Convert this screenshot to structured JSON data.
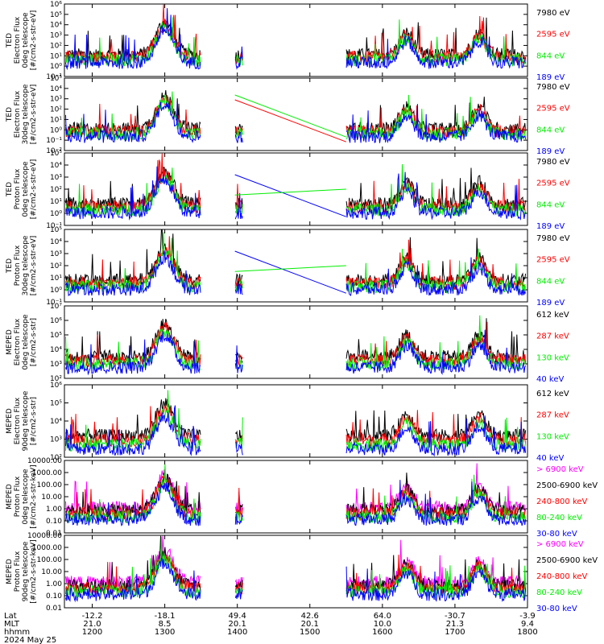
{
  "chart_data": [
    {
      "type": "line",
      "ylabel": [
        "TED",
        "Electron Flux",
        "0deg telescope",
        "[#/cm2-s-str-eV]"
      ],
      "yticks": [
        "10⁻¹",
        "10⁰",
        "10¹",
        "10²",
        "10³",
        "10⁴",
        "10⁵",
        "10⁶"
      ],
      "ylim_log": [
        -1,
        6
      ],
      "series": [
        {
          "name": "7980 eV",
          "color": "#000000"
        },
        {
          "name": "2595 eV",
          "color": "#ff0000"
        },
        {
          "name": "844 eV",
          "color": "#00ee00"
        },
        {
          "name": "189 eV",
          "color": "#0000ff"
        }
      ]
    },
    {
      "type": "line",
      "ylabel": [
        "TED",
        "Electron Flux",
        "30deg telescope",
        "[#/cm2-s-str-eV]"
      ],
      "yticks": [
        "10⁻²",
        "10⁻¹",
        "10⁰",
        "10¹",
        "10²",
        "10³",
        "10⁴",
        "10⁵"
      ],
      "ylim_log": [
        -2,
        5
      ],
      "series": [
        {
          "name": "7980 eV",
          "color": "#000000"
        },
        {
          "name": "2595 eV",
          "color": "#ff0000"
        },
        {
          "name": "844 eV",
          "color": "#00ee00"
        },
        {
          "name": "189 eV",
          "color": "#0000ff"
        }
      ]
    },
    {
      "type": "line",
      "ylabel": [
        "TED",
        "Proton Flux",
        "0deg telescope",
        "[#/cm2-s-str-eV]"
      ],
      "yticks": [
        "10⁻¹",
        "10⁰",
        "10¹",
        "10²",
        "10³",
        "10⁴",
        "10⁵"
      ],
      "ylim_log": [
        -1,
        5
      ],
      "series": [
        {
          "name": "7980 eV",
          "color": "#000000"
        },
        {
          "name": "2595 eV",
          "color": "#ff0000"
        },
        {
          "name": "844 eV",
          "color": "#00ee00"
        },
        {
          "name": "189 eV",
          "color": "#0000ff"
        }
      ]
    },
    {
      "type": "line",
      "ylabel": [
        "TED",
        "Proton Flux",
        "30deg telescope",
        "[#/cm2-s-str-eV]"
      ],
      "yticks": [
        "10⁻¹",
        "10⁰",
        "10¹",
        "10²",
        "10³",
        "10⁴",
        "10⁵"
      ],
      "ylim_log": [
        -1,
        5
      ],
      "series": [
        {
          "name": "7980 eV",
          "color": "#000000"
        },
        {
          "name": "2595 eV",
          "color": "#ff0000"
        },
        {
          "name": "844 eV",
          "color": "#00ee00"
        },
        {
          "name": "189 eV",
          "color": "#0000ff"
        }
      ]
    },
    {
      "type": "line",
      "ylabel": [
        "MEPED",
        "Electron Flux",
        "0deg telescope",
        "[#/cm2-s-str]"
      ],
      "yticks": [
        "10²",
        "10³",
        "10⁴",
        "10⁵",
        "10⁶",
        "10⁷"
      ],
      "ylim_log": [
        2,
        7
      ],
      "series": [
        {
          "name": "612 keV",
          "color": "#000000"
        },
        {
          "name": "287 keV",
          "color": "#ff0000"
        },
        {
          "name": "130 keV",
          "color": "#00ee00"
        },
        {
          "name": "40 keV",
          "color": "#0000ff"
        }
      ]
    },
    {
      "type": "line",
      "ylabel": [
        "MEPED",
        "Electron Flux",
        "90deg telescope",
        "[#/cm2-s-str]"
      ],
      "yticks": [
        "10²",
        "10³",
        "10⁴",
        "10⁵",
        "10⁶"
      ],
      "ylim_log": [
        2,
        6
      ],
      "series": [
        {
          "name": "612 keV",
          "color": "#000000"
        },
        {
          "name": "287 keV",
          "color": "#ff0000"
        },
        {
          "name": "130 keV",
          "color": "#00ee00"
        },
        {
          "name": "40 keV",
          "color": "#0000ff"
        }
      ]
    },
    {
      "type": "line",
      "ylabel": [
        "MEPED",
        "Proton Flux",
        "0deg telescope",
        "[#/cm2-s-str-keV]"
      ],
      "yticks": [
        "0.01",
        "0.10",
        "1.00",
        "10.00",
        "100.00",
        "1000.00",
        "10000.00"
      ],
      "ylim_log": [
        -2,
        4
      ],
      "series": [
        {
          "name": "> 6900 keV",
          "color": "#ff00ff"
        },
        {
          "name": "2500-6900 keV",
          "color": "#000000"
        },
        {
          "name": "240-800 keV",
          "color": "#ff0000"
        },
        {
          "name": "80-240 keV",
          "color": "#00ee00"
        },
        {
          "name": "30-80 keV",
          "color": "#0000ff"
        }
      ]
    },
    {
      "type": "line",
      "ylabel": [
        "MEPED",
        "Proton Flux",
        "90deg telescope",
        "[#/cm2-s-str-keV]"
      ],
      "yticks": [
        "0.01",
        "0.10",
        "1.00",
        "10.00",
        "100.00",
        "1000.00",
        "10000.00"
      ],
      "ylim_log": [
        -2,
        4
      ],
      "series": [
        {
          "name": "> 6900 keV",
          "color": "#ff00ff"
        },
        {
          "name": "2500-6900 keV",
          "color": "#000000"
        },
        {
          "name": "240-800 keV",
          "color": "#ff0000"
        },
        {
          "name": "80-240 keV",
          "color": "#00ee00"
        },
        {
          "name": "30-80 keV",
          "color": "#0000ff"
        }
      ]
    }
  ],
  "x_axis": {
    "xlim_hhmm": [
      "1137",
      "1800"
    ],
    "row_labels": [
      "Lat",
      "MLT",
      "hhmm",
      "2024 May 25"
    ],
    "ticks": [
      {
        "hhmm": "1200",
        "lat": "-12.2",
        "mlt": "21.0"
      },
      {
        "hhmm": "1300",
        "lat": "-18.1",
        "mlt": "8.5"
      },
      {
        "hhmm": "1400",
        "lat": "49.4",
        "mlt": "20.1"
      },
      {
        "hhmm": "1500",
        "lat": "42.6",
        "mlt": "20.1"
      },
      {
        "hhmm": "1600",
        "lat": "64.0",
        "mlt": "10.0"
      },
      {
        "hhmm": "1700",
        "lat": "-30.7",
        "mlt": "21.3"
      },
      {
        "hhmm": "1800",
        "lat": "-3.9",
        "mlt": "9.4"
      }
    ]
  }
}
